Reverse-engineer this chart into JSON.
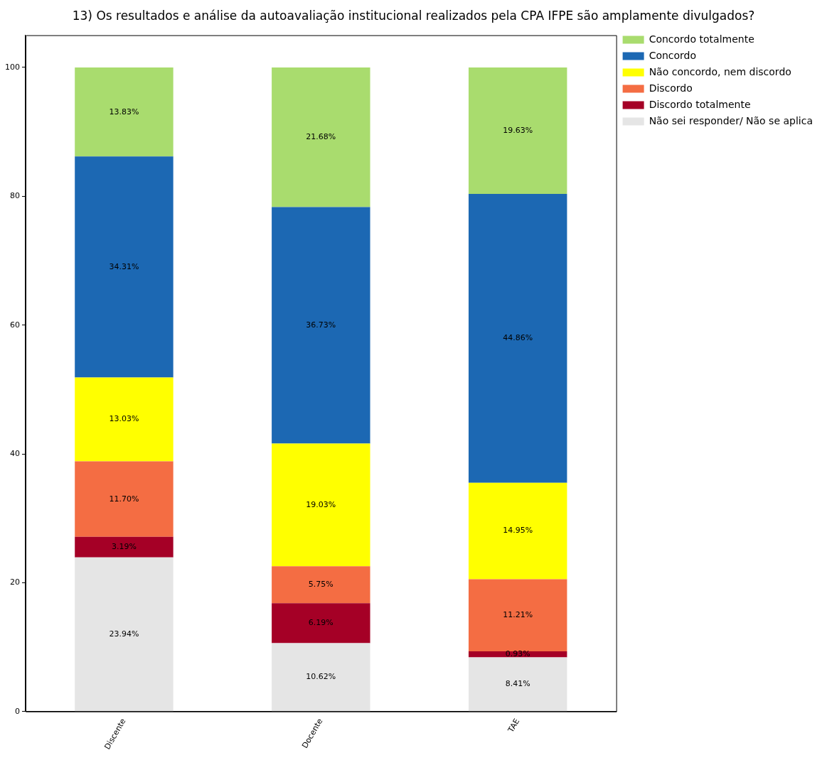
{
  "chart_data": {
    "type": "bar",
    "title": "13) Os resultados e análise da autoavaliação institucional realizados pela CPA IFPE são amplamente divulgados?",
    "categories": [
      "Discente",
      "Docente",
      "TAE"
    ],
    "stacked": true,
    "series": [
      {
        "name": "Não sei responder/ Não se aplica",
        "color": "#e5e5e5",
        "values": [
          23.94,
          10.62,
          8.41
        ],
        "value_labels": [
          "23.94%",
          "10.62%",
          "8.41%"
        ]
      },
      {
        "name": "Discordo totalmente",
        "color": "#a50026",
        "values": [
          3.19,
          6.19,
          0.93
        ],
        "value_labels": [
          "3.19%",
          "6.19%",
          "0.93%"
        ]
      },
      {
        "name": "Discordo",
        "color": "#f46d43",
        "values": [
          11.7,
          5.75,
          11.21
        ],
        "value_labels": [
          "11.70%",
          "5.75%",
          "11.21%"
        ]
      },
      {
        "name": "Não concordo, nem discordo",
        "color": "#ffff00",
        "values": [
          13.03,
          19.03,
          14.95
        ],
        "value_labels": [
          "13.03%",
          "19.03%",
          "14.95%"
        ]
      },
      {
        "name": "Concordo",
        "color": "#1c68b3",
        "values": [
          34.31,
          36.73,
          44.86
        ],
        "value_labels": [
          "34.31%",
          "36.73%",
          "44.86%"
        ]
      },
      {
        "name": "Concordo totalmente",
        "color": "#a9dc6e",
        "values": [
          13.83,
          21.68,
          19.63
        ],
        "value_labels": [
          "13.83%",
          "21.68%",
          "19.63%"
        ]
      }
    ],
    "ylim": [
      0,
      105
    ],
    "yticks": [
      0,
      20,
      40,
      60,
      80,
      100
    ],
    "grid": false,
    "legend": "right"
  }
}
